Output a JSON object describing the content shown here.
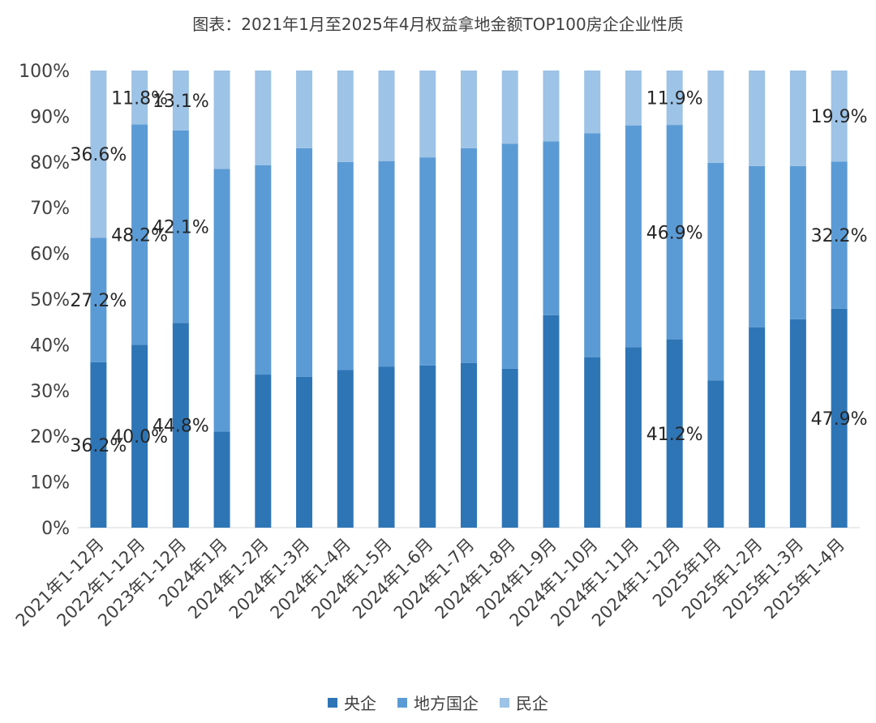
{
  "chart_data": {
    "type": "bar",
    "stacked": true,
    "percent": true,
    "title": "图表：2021年1月至2025年4月权益拿地金额TOP100房企企业性质",
    "xlabel": "",
    "ylabel": "",
    "ylim": [
      0,
      100
    ],
    "y_ticks": [
      "0%",
      "10%",
      "20%",
      "30%",
      "40%",
      "50%",
      "60%",
      "70%",
      "80%",
      "90%",
      "100%"
    ],
    "categories": [
      "2021年1-12月",
      "2022年1-12月",
      "2023年1-12月",
      "2024年1月",
      "2024年1-2月",
      "2024年1-3月",
      "2024年1-4月",
      "2024年1-5月",
      "2024年1-6月",
      "2024年1-7月",
      "2024年1-8月",
      "2024年1-9月",
      "2024年1-10月",
      "2024年1-11月",
      "2024年1-12月",
      "2025年1月",
      "2025年1-2月",
      "2025年1-3月",
      "2025年1-4月"
    ],
    "series": [
      {
        "name": "央企",
        "color": "#2e75b6",
        "values": [
          36.2,
          40.0,
          44.8,
          21.0,
          33.5,
          33.0,
          34.5,
          35.2,
          35.5,
          36.0,
          34.8,
          46.5,
          37.3,
          39.5,
          41.2,
          32.2,
          43.8,
          45.6,
          47.9
        ]
      },
      {
        "name": "地方国企",
        "color": "#5b9bd5",
        "values": [
          27.2,
          48.2,
          42.1,
          57.5,
          45.8,
          50.0,
          45.5,
          45.0,
          45.5,
          47.0,
          49.2,
          38.0,
          49.0,
          48.5,
          46.9,
          47.6,
          35.3,
          33.5,
          32.2
        ]
      },
      {
        "name": "民企",
        "color": "#9dc3e6",
        "values": [
          36.6,
          11.8,
          13.1,
          21.5,
          20.7,
          17.0,
          20.0,
          19.8,
          19.0,
          17.0,
          16.0,
          15.5,
          13.7,
          12.0,
          11.9,
          20.2,
          20.9,
          20.9,
          19.9
        ]
      }
    ],
    "data_labels": [
      {
        "category": 0,
        "series": 0,
        "text": "36.2%"
      },
      {
        "category": 0,
        "series": 1,
        "text": "27.2%"
      },
      {
        "category": 0,
        "series": 2,
        "text": "36.6%"
      },
      {
        "category": 1,
        "series": 0,
        "text": "40.0%"
      },
      {
        "category": 1,
        "series": 1,
        "text": "48.2%"
      },
      {
        "category": 1,
        "series": 2,
        "text": "11.8%"
      },
      {
        "category": 2,
        "series": 0,
        "text": "44.8%"
      },
      {
        "category": 2,
        "series": 1,
        "text": "42.1%"
      },
      {
        "category": 2,
        "series": 2,
        "text": "13.1%"
      },
      {
        "category": 14,
        "series": 0,
        "text": "41.2%"
      },
      {
        "category": 14,
        "series": 1,
        "text": "46.9%"
      },
      {
        "category": 14,
        "series": 2,
        "text": "11.9%"
      },
      {
        "category": 18,
        "series": 0,
        "text": "47.9%"
      },
      {
        "category": 18,
        "series": 1,
        "text": "32.2%"
      },
      {
        "category": 18,
        "series": 2,
        "text": "19.9%"
      }
    ],
    "grid": false,
    "legend_position": "bottom"
  }
}
